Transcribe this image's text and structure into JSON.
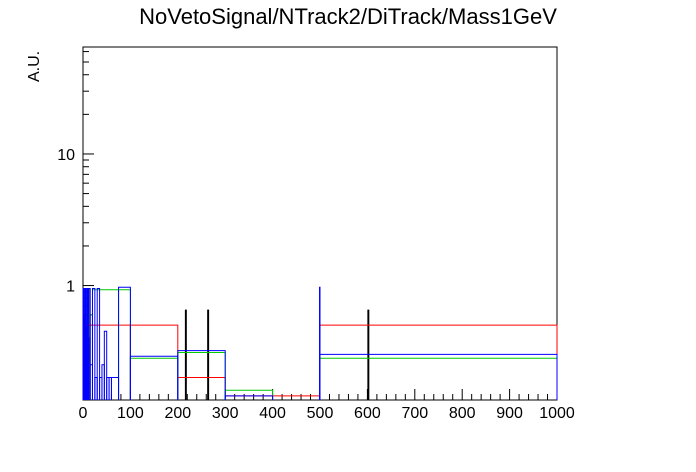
{
  "chart_data": {
    "type": "histogram",
    "title": "NoVetoSignal/NTrack2/DiTrack/Mass1GeV",
    "xlabel": "",
    "ylabel": "A.U.",
    "xlim": [
      0,
      1000
    ],
    "ylim": [
      0.135,
      65
    ],
    "yscale": "log",
    "x_ticks": [
      0,
      100,
      200,
      300,
      400,
      500,
      600,
      700,
      800,
      900,
      1000
    ],
    "y_ticks": [
      1,
      10
    ],
    "grid": false,
    "legend": "none",
    "series": [
      {
        "color": "#000000",
        "segments": [
          {
            "x0": 0,
            "x1": 1,
            "y": 0.6
          },
          {
            "x0": 1,
            "x1": 2,
            "y": 0.4
          },
          {
            "x0": 2,
            "x1": 3,
            "y": 0.6
          },
          {
            "x0": 3,
            "x1": 4,
            "y": 0.3
          },
          {
            "x0": 4,
            "x1": 5,
            "y": 0.6
          },
          {
            "x0": 5,
            "x1": 6,
            "y": 0.4
          },
          {
            "x0": 6,
            "x1": 8,
            "y": 0.25
          },
          {
            "x0": 8,
            "x1": 10,
            "y": 0.95
          },
          {
            "x0": 10,
            "x1": 12,
            "y": 0.4
          },
          {
            "x0": 12,
            "x1": 15,
            "y": 0.95
          },
          {
            "x0": 15,
            "x1": 20,
            "y": 0.6
          },
          {
            "x0": 216,
            "x1": 218,
            "y": 0.65
          },
          {
            "x0": 263,
            "x1": 265,
            "y": 0.65
          },
          {
            "x0": 601,
            "x1": 603,
            "y": 0.65
          }
        ]
      },
      {
        "color": "#ff0000",
        "segments": [
          {
            "x0": 0,
            "x1": 4,
            "y": 0.35
          },
          {
            "x0": 4,
            "x1": 8,
            "y": 0.5
          },
          {
            "x0": 8,
            "x1": 100,
            "y": 0.5
          },
          {
            "x0": 100,
            "x1": 200,
            "y": 0.5
          },
          {
            "x0": 200,
            "x1": 300,
            "y": 0.2
          },
          {
            "x0": 300,
            "x1": 500,
            "y": 0.145
          },
          {
            "x0": 500,
            "x1": 1000,
            "y": 0.5
          }
        ]
      },
      {
        "color": "#00cc00",
        "segments": [
          {
            "x0": 0,
            "x1": 10,
            "y": 0.4
          },
          {
            "x0": 10,
            "x1": 20,
            "y": 0.6
          },
          {
            "x0": 20,
            "x1": 75,
            "y": 0.93
          },
          {
            "x0": 75,
            "x1": 100,
            "y": 0.93
          },
          {
            "x0": 100,
            "x1": 200,
            "y": 0.28
          },
          {
            "x0": 200,
            "x1": 300,
            "y": 0.31
          },
          {
            "x0": 300,
            "x1": 400,
            "y": 0.16
          },
          {
            "x0": 500,
            "x1": 1000,
            "y": 0.28
          }
        ]
      },
      {
        "color": "#0000ff",
        "segments": [
          {
            "x0": 0,
            "x1": 2,
            "y": 0.95
          },
          {
            "x0": 2,
            "x1": 4,
            "y": 0.3
          },
          {
            "x0": 4,
            "x1": 6,
            "y": 0.95
          },
          {
            "x0": 6,
            "x1": 8,
            "y": 0.5
          },
          {
            "x0": 8,
            "x1": 10,
            "y": 0.95
          },
          {
            "x0": 10,
            "x1": 12,
            "y": 0.4
          },
          {
            "x0": 12,
            "x1": 15,
            "y": 0.95
          },
          {
            "x0": 15,
            "x1": 20,
            "y": 0.25
          },
          {
            "x0": 20,
            "x1": 25,
            "y": 0.95
          },
          {
            "x0": 25,
            "x1": 30,
            "y": 0.2
          },
          {
            "x0": 30,
            "x1": 35,
            "y": 0.95
          },
          {
            "x0": 35,
            "x1": 40,
            "y": 0.2
          },
          {
            "x0": 40,
            "x1": 45,
            "y": 0.25
          },
          {
            "x0": 45,
            "x1": 50,
            "y": 0.45
          },
          {
            "x0": 50,
            "x1": 55,
            "y": 0.2
          },
          {
            "x0": 55,
            "x1": 60,
            "y": 0.2
          },
          {
            "x0": 60,
            "x1": 75,
            "y": 0.2
          },
          {
            "x0": 75,
            "x1": 100,
            "y": 0.97
          },
          {
            "x0": 100,
            "x1": 200,
            "y": 0.29
          },
          {
            "x0": 200,
            "x1": 300,
            "y": 0.32
          },
          {
            "x0": 300,
            "x1": 400,
            "y": 0.145
          },
          {
            "x0": 500,
            "x1": 1000,
            "y": 0.3
          },
          {
            "x0": 499,
            "x1": 500,
            "y": 0.97
          }
        ]
      }
    ]
  }
}
